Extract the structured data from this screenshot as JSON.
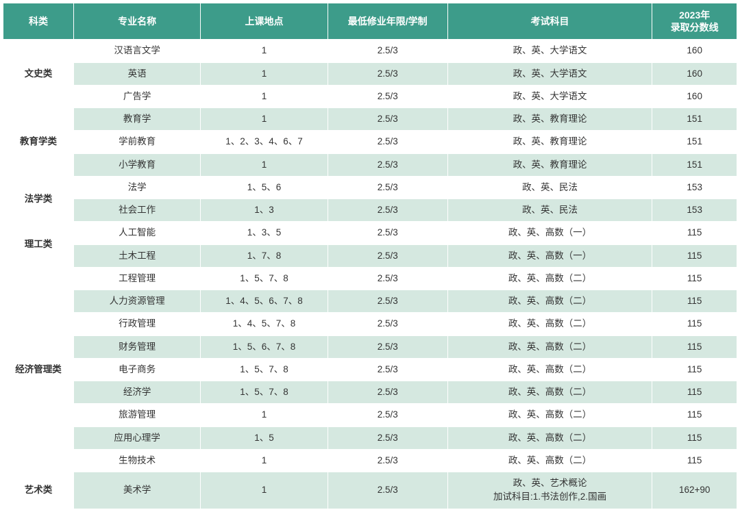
{
  "headers": {
    "category": "科类",
    "major": "专业名称",
    "location": "上课地点",
    "duration": "最低修业年限/学制",
    "exam": "考试科目",
    "score": "2023年\n录取分数线"
  },
  "styling": {
    "header_bg": "#3d9c8a",
    "header_fg": "#ffffff",
    "row_even_bg": "#d5e8e0",
    "row_odd_bg": "#ffffff",
    "border_color": "#ffffff",
    "header_fontsize": 14,
    "cell_fontsize": 13.5
  },
  "groups": [
    {
      "category": "文史类",
      "rows": [
        {
          "major": "汉语言文学",
          "location": "1",
          "duration": "2.5/3",
          "exam": "政、英、大学语文",
          "score": "160"
        },
        {
          "major": "英语",
          "location": "1",
          "duration": "2.5/3",
          "exam": "政、英、大学语文",
          "score": "160"
        },
        {
          "major": "广告学",
          "location": "1",
          "duration": "2.5/3",
          "exam": "政、英、大学语文",
          "score": "160"
        }
      ]
    },
    {
      "category": "教育学类",
      "rows": [
        {
          "major": "教育学",
          "location": "1",
          "duration": "2.5/3",
          "exam": "政、英、教育理论",
          "score": "151"
        },
        {
          "major": "学前教育",
          "location": "1、2、3、4、6、7",
          "duration": "2.5/3",
          "exam": "政、英、教育理论",
          "score": "151"
        },
        {
          "major": "小学教育",
          "location": "1",
          "duration": "2.5/3",
          "exam": "政、英、教育理论",
          "score": "151"
        }
      ]
    },
    {
      "category": "法学类",
      "rows": [
        {
          "major": "法学",
          "location": "1、5、6",
          "duration": "2.5/3",
          "exam": "政、英、民法",
          "score": "153"
        },
        {
          "major": "社会工作",
          "location": "1、3",
          "duration": "2.5/3",
          "exam": "政、英、民法",
          "score": "153"
        }
      ]
    },
    {
      "category": "理工类",
      "rows": [
        {
          "major": "人工智能",
          "location": "1、3、5",
          "duration": "2.5/3",
          "exam": "政、英、高数（一）",
          "score": "115"
        },
        {
          "major": "土木工程",
          "location": "1、7、8",
          "duration": "2.5/3",
          "exam": "政、英、高数（一）",
          "score": "115"
        }
      ]
    },
    {
      "category": "经济管理类",
      "rows": [
        {
          "major": "工程管理",
          "location": "1、5、7、8",
          "duration": "2.5/3",
          "exam": "政、英、高数（二）",
          "score": "115"
        },
        {
          "major": "人力资源管理",
          "location": "1、4、5、6、7、8",
          "duration": "2.5/3",
          "exam": "政、英、高数（二）",
          "score": "115"
        },
        {
          "major": "行政管理",
          "location": "1、4、5、7、8",
          "duration": "2.5/3",
          "exam": "政、英、高数（二）",
          "score": "115"
        },
        {
          "major": "财务管理",
          "location": "1、5、6、7、8",
          "duration": "2.5/3",
          "exam": "政、英、高数（二）",
          "score": "115"
        },
        {
          "major": "电子商务",
          "location": "1、5、7、8",
          "duration": "2.5/3",
          "exam": "政、英、高数（二）",
          "score": "115"
        },
        {
          "major": "经济学",
          "location": "1、5、7、8",
          "duration": "2.5/3",
          "exam": "政、英、高数（二）",
          "score": "115"
        },
        {
          "major": "旅游管理",
          "location": "1",
          "duration": "2.5/3",
          "exam": "政、英、高数（二）",
          "score": "115"
        },
        {
          "major": "应用心理学",
          "location": "1、5",
          "duration": "2.5/3",
          "exam": "政、英、高数（二）",
          "score": "115"
        },
        {
          "major": "生物技术",
          "location": "1",
          "duration": "2.5/3",
          "exam": "政、英、高数（二）",
          "score": "115"
        }
      ]
    },
    {
      "category": "艺术类",
      "rows": [
        {
          "major": "美术学",
          "location": "1",
          "duration": "2.5/3",
          "exam": "政、英、艺术概论\n加试科目:1.书法创作,2.国画",
          "score": "162+90"
        }
      ]
    }
  ]
}
